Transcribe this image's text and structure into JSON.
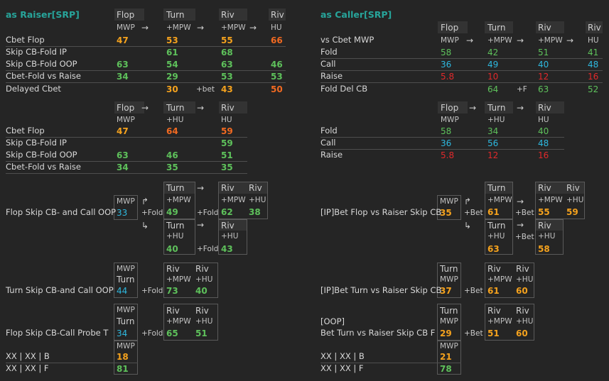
{
  "raiser": {
    "title": "as Raiser[SRP]",
    "t1": {
      "h_flop": "Flop",
      "h_turn": "Turn",
      "h_riv1": "Riv",
      "h_riv2": "Riv",
      "s_flop": "MWP",
      "s_turn": "+MPW",
      "s_riv1": "+MPW",
      "s_riv2": "HU",
      "arrow": "→",
      "rows": [
        {
          "label": "Cbet Flop",
          "v": [
            "47",
            "53",
            "55",
            "66"
          ]
        },
        {
          "label": "Skip CB-Fold IP",
          "v": [
            "",
            "61",
            "68",
            ""
          ]
        },
        {
          "label": "Skip CB-Fold OOP",
          "v": [
            "63",
            "54",
            "63",
            "46"
          ]
        },
        {
          "label": "Cbet-Fold vs Raise",
          "v": [
            "34",
            "29",
            "53",
            "53"
          ]
        },
        {
          "label": "Delayed Cbet",
          "v": [
            "",
            "30",
            "43",
            "50"
          ],
          "act": "+bet"
        }
      ]
    },
    "t2": {
      "h_flop": "Flop",
      "h_turn": "Turn",
      "h_riv": "Riv",
      "s_flop": "MWP",
      "s_turn": "+HU",
      "s_riv": "HU",
      "rows": [
        {
          "label": "Cbet Flop",
          "v": [
            "47",
            "64",
            "59"
          ]
        },
        {
          "label": "Skip CB-Fold IP",
          "v": [
            "",
            "",
            "59"
          ]
        },
        {
          "label": "Skip CB-Fold OOP",
          "v": [
            "63",
            "46",
            "51"
          ]
        },
        {
          "label": "Cbet-Fold vs Raise",
          "v": [
            "34",
            "35",
            "35"
          ]
        }
      ]
    },
    "b1": {
      "label": "Flop Skip CB- and Call OOP",
      "mwp": "MWP",
      "mwp_v": "33",
      "up": "↱",
      "down": "↳",
      "act1": "+Fold",
      "turn": "Turn",
      "t_sub1": "+MPW",
      "t_v1": "49",
      "act2": "+Fold",
      "riv": "Riv",
      "r_sub1": "+MPW",
      "r_v1": "62",
      "r_sub2": "+HU",
      "r_v2": "38",
      "t_sub2": "+HU",
      "t_v2": "40",
      "act3": "+Fold",
      "r_sub3": "+HU",
      "r_v3": "43"
    },
    "b2": {
      "label": "Turn Skip CB-and Call OOP",
      "mwp": "MWP",
      "turn": "Turn",
      "v": "44",
      "act": "+Fold",
      "riv": "Riv",
      "sub1": "+MPW",
      "v1": "73",
      "sub2": "+HU",
      "v2": "40"
    },
    "b3": {
      "label": "Flop Skip CB-Call Probe T",
      "mwp": "MWP",
      "turn": "Turn",
      "v": "34",
      "act": "+Fold",
      "riv": "Riv",
      "sub1": "+MPW",
      "v1": "65",
      "sub2": "+HU",
      "v2": "51"
    },
    "b4": {
      "label1": "XX | XX | B",
      "label2": "XX | XX | F",
      "mwp": "MWP",
      "v1": "18",
      "v2": "81"
    }
  },
  "caller": {
    "title": "as Caller[SRP]",
    "t1": {
      "h_flop": "Flop",
      "h_turn": "Turn",
      "h_riv1": "Riv",
      "h_riv2": "Riv",
      "first": "vs Cbet MWP",
      "s_flop": "MWP",
      "s_turn": "+MPW",
      "s_riv1": "+MPW",
      "s_riv2": "HU",
      "rows": [
        {
          "label": "Fold",
          "v": [
            "58",
            "42",
            "51",
            "41"
          ]
        },
        {
          "label": "Call",
          "v": [
            "36",
            "49",
            "40",
            "48"
          ]
        },
        {
          "label": "Raise",
          "v": [
            "5.8",
            "10",
            "12",
            "16"
          ]
        },
        {
          "label": "Fold Del CB",
          "v": [
            "",
            "64",
            "63",
            "52"
          ],
          "act": "+F"
        }
      ]
    },
    "t2": {
      "h_flop": "Flop",
      "h_turn": "Turn",
      "h_riv": "Riv",
      "s_flop": "MWP",
      "s_turn": "+HU",
      "s_riv": "HU",
      "rows": [
        {
          "label": "Fold",
          "v": [
            "58",
            "34",
            "40"
          ]
        },
        {
          "label": "Call",
          "v": [
            "36",
            "56",
            "48"
          ]
        },
        {
          "label": "Raise",
          "v": [
            "5.8",
            "12",
            "16"
          ]
        }
      ]
    },
    "b1": {
      "label": "[IP]Bet Flop vs Raiser Skip CB",
      "mwp": "MWP",
      "mwp_v": "35",
      "act1": "+Bet",
      "turn": "Turn",
      "t_sub1": "+MPW",
      "t_v1": "61",
      "act2": "+Bet",
      "riv": "Riv",
      "r_sub1": "+MPW",
      "r_v1": "55",
      "r_sub2": "+HU",
      "r_v2": "59",
      "t_sub2": "+HU",
      "t_v2": "63",
      "act3": "+Bet",
      "r_sub3": "+HU",
      "r_v3": "58"
    },
    "b2": {
      "label": "[IP]Bet Turn vs Raiser Skip CB",
      "mwp": "MWP",
      "turn": "Turn",
      "v": "37",
      "act": "+Bet",
      "riv": "Riv",
      "sub1": "+MPW",
      "v1": "61",
      "sub2": "+HU",
      "v2": "60"
    },
    "b3": {
      "label1": "[OOP]",
      "label2": "Bet Turn vs Raiser Skip CB  F",
      "mwp": "MWP",
      "turn": "Turn",
      "v": "29",
      "act": "+Bet",
      "riv": "Riv",
      "sub1": "+MPW",
      "v1": "51",
      "sub2": "+HU",
      "v2": "60"
    },
    "b4": {
      "label1": "XX | XX | B",
      "label2": "XX | XX | F",
      "mwp": "MWP",
      "v1": "21",
      "v2": "78"
    }
  },
  "colors": {
    "orange": "#f5a21d",
    "red_orange": "#f26a21",
    "green": "#5ec15b",
    "blue": "#2eb8df",
    "red": "#e0292b",
    "title": "#27a59b"
  }
}
